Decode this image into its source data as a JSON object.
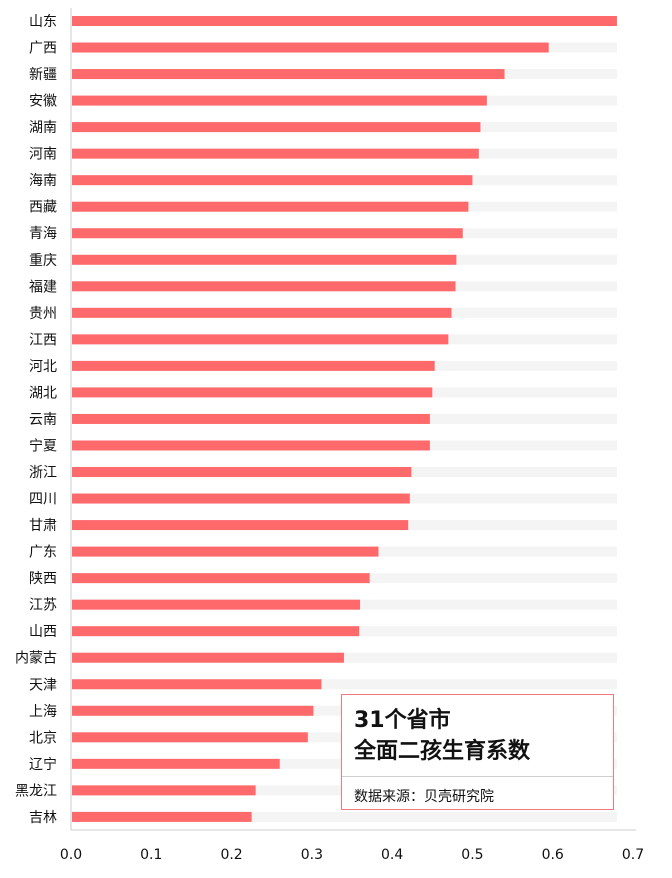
{
  "chart_data": {
    "type": "bar",
    "orientation": "horizontal",
    "title": "31个省市\n全面二孩生育系数",
    "source": "数据来源：贝壳研究院",
    "categories": [
      "山东",
      "广西",
      "新疆",
      "安徽",
      "湖南",
      "河南",
      "海南",
      "西藏",
      "青海",
      "重庆",
      "福建",
      "贵州",
      "江西",
      "河北",
      "湖北",
      "云南",
      "宁夏",
      "浙江",
      "四川",
      "甘肃",
      "广东",
      "陕西",
      "江苏",
      "山西",
      "内蒙古",
      "天津",
      "上海",
      "北京",
      "辽宁",
      "黑龙江",
      "吉林"
    ],
    "values": [
      0.68,
      0.595,
      0.54,
      0.518,
      0.51,
      0.508,
      0.5,
      0.495,
      0.488,
      0.48,
      0.479,
      0.474,
      0.47,
      0.453,
      0.45,
      0.447,
      0.447,
      0.424,
      0.422,
      0.42,
      0.383,
      0.372,
      0.36,
      0.359,
      0.34,
      0.312,
      0.302,
      0.295,
      0.26,
      0.23,
      0.225
    ],
    "track_max": 0.68,
    "xlim": [
      0,
      0.7
    ],
    "xticks": [
      "0.0",
      "0.1",
      "0.2",
      "0.3",
      "0.4",
      "0.5",
      "0.6",
      "0.7"
    ],
    "colors": {
      "bar": "#fe6a6c",
      "track": "#f4f4f4",
      "legend_border": "#f07a80"
    },
    "grid": false,
    "legend_position": "bottom-right"
  }
}
